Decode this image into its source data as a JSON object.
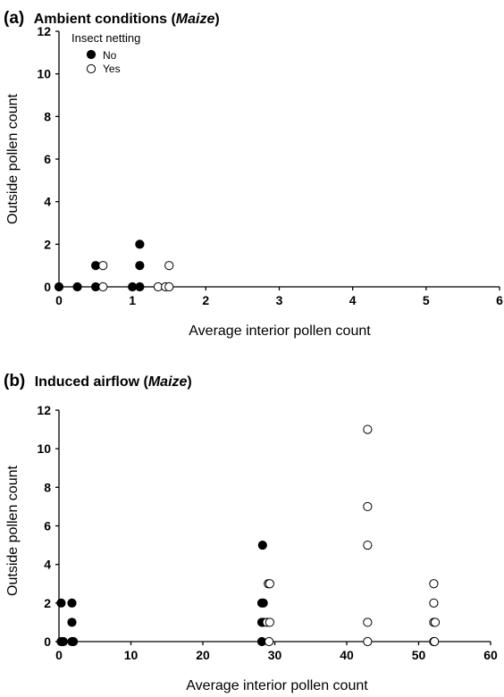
{
  "chart_data": [
    {
      "type": "scatter",
      "panel": "(a)",
      "title": "Ambient conditions (",
      "title_italic": "Maize",
      "title_end": ")",
      "xlabel": "Average interior pollen count",
      "ylabel": "Outside pollen count",
      "xlim": [
        0,
        6
      ],
      "ylim": [
        0,
        12
      ],
      "x_ticks": [
        "0",
        "1",
        "2",
        "3",
        "4",
        "5",
        "6"
      ],
      "y_ticks": [
        "0",
        "2",
        "4",
        "6",
        "8",
        "10",
        "12"
      ],
      "legend": {
        "title": "Insect netting",
        "placement": "top-left"
      },
      "series": [
        {
          "name": "No",
          "marker": "filled-circle",
          "color": "#000000",
          "points": [
            [
              0,
              0
            ],
            [
              0.25,
              0
            ],
            [
              0.5,
              0
            ],
            [
              0.5,
              1
            ],
            [
              1.0,
              0
            ],
            [
              1.1,
              0
            ],
            [
              1.1,
              1
            ],
            [
              1.1,
              2
            ]
          ]
        },
        {
          "name": "Yes",
          "marker": "open-circle",
          "color": "#000000",
          "points": [
            [
              0.6,
              0
            ],
            [
              0.6,
              1
            ],
            [
              1.35,
              0
            ],
            [
              1.45,
              0
            ],
            [
              1.5,
              0
            ],
            [
              1.5,
              1
            ]
          ]
        }
      ]
    },
    {
      "type": "scatter",
      "panel": "(b)",
      "title": "Induced airflow (",
      "title_italic": "Maize",
      "title_end": ")",
      "xlabel": "Average interior pollen count",
      "ylabel": "Outside pollen count",
      "xlim": [
        0,
        60
      ],
      "ylim": [
        0,
        12
      ],
      "x_ticks": [
        "0",
        "10",
        "20",
        "30",
        "40",
        "50",
        "60"
      ],
      "y_ticks": [
        "0",
        "2",
        "4",
        "6",
        "8",
        "10",
        "12"
      ],
      "series": [
        {
          "name": "No",
          "marker": "filled-circle",
          "color": "#000000",
          "points": [
            [
              0.3,
              0
            ],
            [
              0.3,
              2
            ],
            [
              0.6,
              0
            ],
            [
              1.8,
              0
            ],
            [
              1.8,
              1
            ],
            [
              1.8,
              2
            ],
            [
              2.0,
              0
            ],
            [
              28.2,
              0
            ],
            [
              28.2,
              1
            ],
            [
              28.2,
              2
            ],
            [
              28.3,
              5
            ],
            [
              28.4,
              1
            ],
            [
              28.4,
              2
            ]
          ]
        },
        {
          "name": "Yes",
          "marker": "open-circle",
          "color": "#000000",
          "points": [
            [
              28.9,
              1
            ],
            [
              29.1,
              3
            ],
            [
              29.2,
              0
            ],
            [
              29.3,
              1
            ],
            [
              29.3,
              3
            ],
            [
              42.9,
              11
            ],
            [
              42.9,
              7
            ],
            [
              42.9,
              5
            ],
            [
              42.9,
              1
            ],
            [
              42.9,
              0
            ],
            [
              52.1,
              0
            ],
            [
              52.1,
              1
            ],
            [
              52.1,
              2
            ],
            [
              52.1,
              3
            ],
            [
              52.2,
              0
            ],
            [
              52.3,
              1
            ]
          ]
        }
      ]
    }
  ]
}
